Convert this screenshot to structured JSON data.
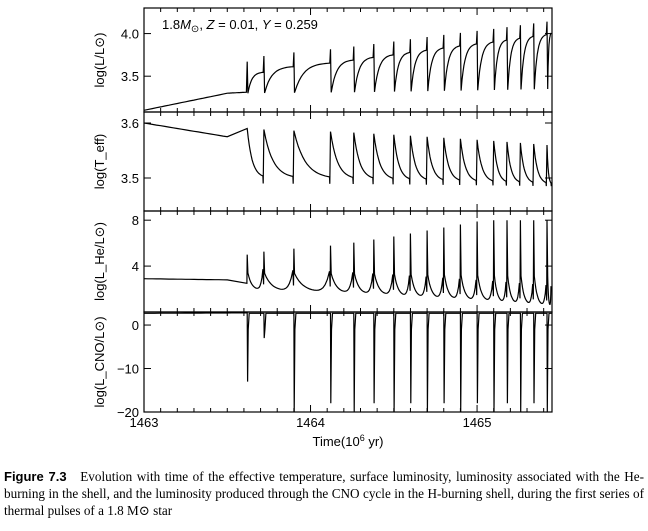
{
  "chart_data": {
    "type": "line",
    "annotation": "1.8M⊙, Z = 0.01, Y = 0.259",
    "annotation_parts": {
      "mass": "1.8",
      "z_label": "Z",
      "z_value": "= 0.01,",
      "y_label": "Y",
      "y_value": "= 0.259"
    },
    "xlabel": "Time(10⁶ yr)",
    "xlim": [
      1463,
      1465.45
    ],
    "x_ticks": [
      1463,
      1464,
      1465
    ],
    "x_tick_labels": [
      "1463",
      "1464",
      "1465"
    ],
    "pulse_times": [
      1463.62,
      1463.72,
      1463.9,
      1464.12,
      1464.26,
      1464.38,
      1464.5,
      1464.6,
      1464.7,
      1464.8,
      1464.9,
      1465.0,
      1465.1,
      1465.18,
      1465.26,
      1465.34,
      1465.42
    ],
    "panels": [
      {
        "id": "luminosity",
        "ylabel": "log(L/L⊙)",
        "ylim": [
          3.08,
          4.3
        ],
        "y_ticks": [
          3.5,
          4.0
        ],
        "y_tick_labels": [
          "3.5",
          "4.0"
        ],
        "baseline": {
          "x": [
            1463,
            1463.5
          ],
          "y": [
            3.1,
            3.3
          ]
        },
        "peak": 4.02,
        "dip": 3.3
      },
      {
        "id": "teff",
        "ylabel": "log(T_eff)",
        "ylim": [
          3.44,
          3.62
        ],
        "y_ticks": [
          3.5,
          3.6
        ],
        "y_tick_labels": [
          "3.5",
          "3.6"
        ],
        "baseline": {
          "x": [
            1463,
            1463.5
          ],
          "y": [
            3.6,
            3.575
          ]
        },
        "peak": 3.58,
        "dip": 3.49
      },
      {
        "id": "helium",
        "ylabel": "log(L_He/L⊙)",
        "ylim": [
          0,
          8.8
        ],
        "y_ticks": [
          4,
          8
        ],
        "y_tick_labels": [
          "4",
          "8"
        ],
        "baseline": {
          "x": [
            1463,
            1463.5
          ],
          "y": [
            2.9,
            2.8
          ]
        },
        "peak": 8.0,
        "dip": 0.4
      },
      {
        "id": "cno",
        "ylabel": "log(L_CNO/L⊙)",
        "ylim": [
          -20,
          3
        ],
        "y_ticks": [
          -20,
          -10,
          0
        ],
        "y_tick_labels": [
          "−20",
          "−10",
          "0"
        ],
        "baseline": {
          "x": [
            1463,
            1463.62
          ],
          "y": [
            2.7,
            2.8
          ]
        },
        "plateau": 2.7,
        "dip": -20
      }
    ]
  },
  "caption": {
    "label": "Figure 7.3",
    "text": "Evolution with time of the effective temperature, surface luminosity, luminosity associated with the He-burning in the shell, and the luminosity produced through the CNO cycle in the H-burning shell, during the first series of thermal pulses of a 1.8 M⊙ star"
  }
}
